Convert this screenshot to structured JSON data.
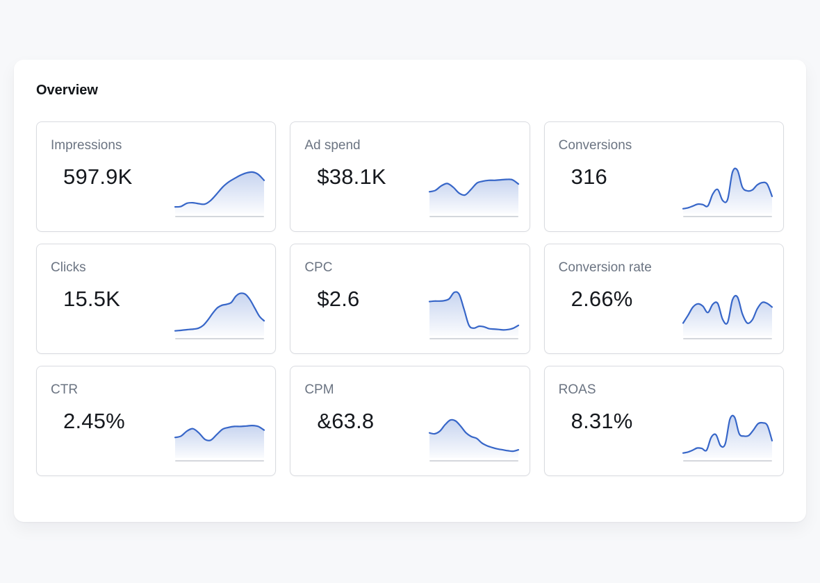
{
  "panel": {
    "title": "Overview"
  },
  "cards": [
    {
      "label": "Impressions",
      "value": "597.9K"
    },
    {
      "label": "Ad spend",
      "value": "$38.1K"
    },
    {
      "label": "Conversions",
      "value": "316"
    },
    {
      "label": "Clicks",
      "value": "15.5K"
    },
    {
      "label": "CPC",
      "value": "$2.6"
    },
    {
      "label": "Conversion rate",
      "value": "2.66%"
    },
    {
      "label": "CTR",
      "value": "2.45%"
    },
    {
      "label": "CPM",
      "value": "&63.8"
    },
    {
      "label": "ROAS",
      "value": "8.31%"
    }
  ],
  "chart_data": [
    {
      "type": "area",
      "name": "Impressions sparkline",
      "values": [
        12,
        13,
        20,
        21,
        19,
        18,
        26,
        40,
        55,
        66,
        74,
        81,
        86,
        88,
        83,
        70
      ]
    },
    {
      "type": "area",
      "name": "Ad spend sparkline",
      "values": [
        45,
        48,
        58,
        63,
        55,
        42,
        38,
        50,
        64,
        68,
        70,
        70,
        71,
        72,
        71,
        62
      ]
    },
    {
      "type": "area",
      "name": "Conversions sparkline",
      "values": [
        8,
        10,
        14,
        18,
        17,
        14,
        40,
        50,
        26,
        28,
        88,
        92,
        55,
        47,
        49,
        60,
        65,
        62,
        35
      ]
    },
    {
      "type": "area",
      "name": "Clicks sparkline",
      "values": [
        8,
        9,
        10,
        11,
        12,
        14,
        20,
        32,
        46,
        58,
        64,
        66,
        70,
        84,
        90,
        88,
        76,
        58,
        40,
        30
      ]
    },
    {
      "type": "area",
      "name": "CPC sparkline",
      "values": [
        72,
        73,
        73,
        74,
        78,
        92,
        88,
        55,
        20,
        14,
        18,
        17,
        13,
        12,
        11,
        10,
        11,
        14,
        20
      ]
    },
    {
      "type": "area",
      "name": "Conversion rate sparkline",
      "values": [
        25,
        42,
        60,
        67,
        62,
        48,
        66,
        68,
        33,
        26,
        76,
        82,
        45,
        25,
        32,
        56,
        70,
        68,
        60
      ]
    },
    {
      "type": "area",
      "name": "CTR sparkline",
      "values": [
        42,
        45,
        56,
        61,
        52,
        38,
        36,
        48,
        60,
        64,
        66,
        66,
        67,
        68,
        66,
        58
      ]
    },
    {
      "type": "area",
      "name": "CPM sparkline",
      "values": [
        52,
        50,
        56,
        70,
        80,
        78,
        66,
        52,
        44,
        40,
        30,
        24,
        20,
        17,
        15,
        13,
        12,
        15
      ]
    },
    {
      "type": "area",
      "name": "ROAS sparkline",
      "values": [
        8,
        10,
        14,
        19,
        18,
        14,
        42,
        48,
        24,
        28,
        82,
        86,
        50,
        45,
        46,
        58,
        72,
        74,
        68,
        35
      ]
    }
  ],
  "colors": {
    "page_bg": "#f7f8fa",
    "panel_bg": "#ffffff",
    "card_border": "#d9dbe0",
    "title_color": "#111418",
    "label_color": "#6b7482",
    "value_color": "#15181d",
    "accent": "#3766c8",
    "baseline_color": "#d4d7dc"
  }
}
